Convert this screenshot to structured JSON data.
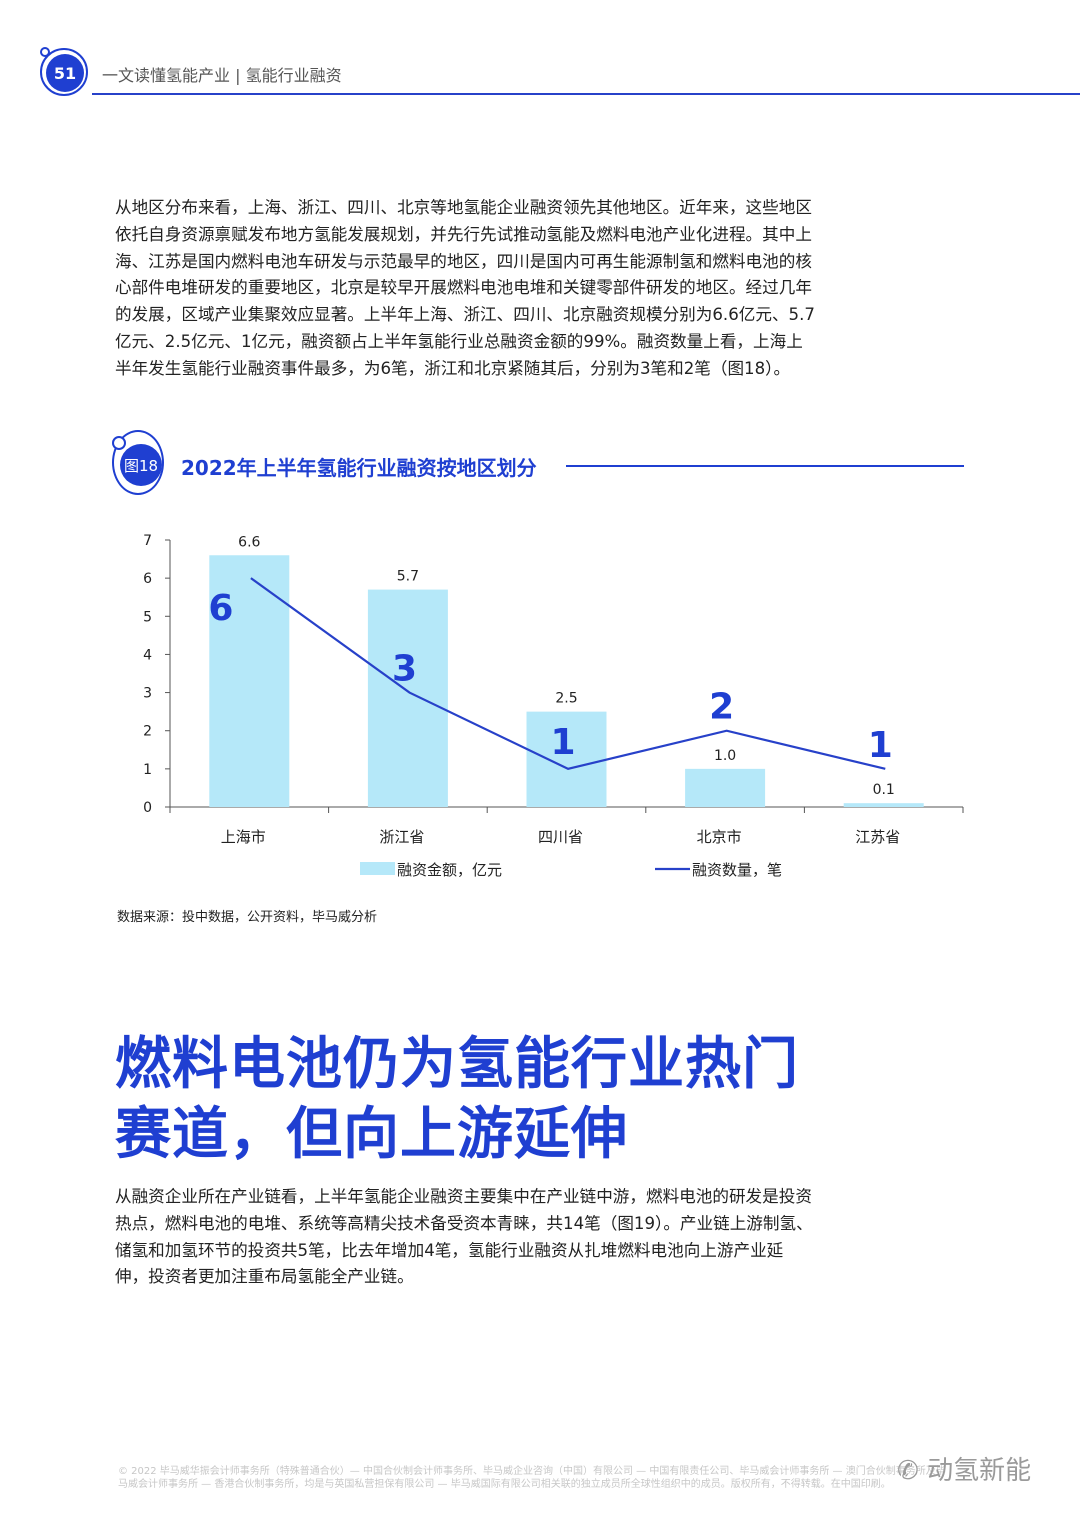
{
  "header": {
    "page_number": "51",
    "running_title": "一文读懂氢能产业 | 氢能行业融资"
  },
  "paragraph1": "从地区分布来看，上海、浙江、四川、北京等地氢能企业融资领先其他地区。近年来，这些地区依托自身资源禀赋发布地方氢能发展规划，并先行先试推动氢能及燃料电池产业化进程。其中上海、江苏是国内燃料电池车研发与示范最早的地区，四川是国内可再生能源制氢和燃料电池的核心部件电堆研发的重要地区，北京是较早开展燃料电池电堆和关键零部件研发的地区。经过几年的发展，区域产业集聚效应显著。上半年上海、浙江、四川、北京融资规模分别为6.6亿元、5.7亿元、2.5亿元、1亿元，融资额占上半年氢能行业总融资金额的99%。融资数量上看，上海上半年发生氢能行业融资事件最多，为6笔，浙江和北京紧随其后，分别为3笔和2笔（图18）。",
  "figure": {
    "badge": "图18",
    "title": "2022年上半年氢能行业融资按地区划分",
    "source": "数据来源：投中数据，公开资料，毕马威分析"
  },
  "chart_data": {
    "type": "bar",
    "categories": [
      "上海市",
      "浙江省",
      "四川省",
      "北京市",
      "江苏省"
    ],
    "series": [
      {
        "name": "融资金额，亿元",
        "kind": "bar",
        "color": "#b5e8f9",
        "values": [
          6.6,
          5.7,
          2.5,
          1.0,
          0.1
        ],
        "labels": [
          "6.6",
          "5.7",
          "2.5",
          "1.0",
          "0.1"
        ]
      },
      {
        "name": "融资数量，笔",
        "kind": "line",
        "color": "#2741c9",
        "values": [
          6,
          3,
          1,
          2,
          1
        ],
        "labels": [
          "6",
          "3",
          "1",
          "2",
          "1"
        ]
      }
    ],
    "yticks": [
      "0",
      "1",
      "2",
      "3",
      "4",
      "5",
      "6",
      "7"
    ],
    "ylim": [
      0,
      7
    ],
    "legend_position": "bottom",
    "grid": false
  },
  "section": {
    "heading_line1": "燃料电池仍为氢能行业热门",
    "heading_line2": "赛道，但向上游延伸"
  },
  "paragraph2": "从融资企业所在产业链看，上半年氢能企业融资主要集中在产业链中游，燃料电池的研发是投资热点，燃料电池的电堆、系统等高精尖技术备受资本青睐，共14笔（图19）。产业链上游制氢、储氢和加氢环节的投资共5笔，比去年增加4笔，氢能行业融资从扎堆燃料电池向上游产业延伸，投资者更加注重布局氢能全产业链。",
  "footer": {
    "copyright": "© 2022 毕马威华振会计师事务所（特殊普通合伙）— 中国合伙制会计师事务所、毕马威企业咨询（中国）有限公司 — 中国有限责任公司、毕马威会计师事务所 — 澳门合伙制事务所及毕马威会计师事务所 — 香港合伙制事务所，均是与英国私营担保有限公司 — 毕马威国际有限公司相关联的独立成员所全球性组织中的成员。版权所有，不得转载。在中国印刷。",
    "watermark": "动氢新能"
  }
}
